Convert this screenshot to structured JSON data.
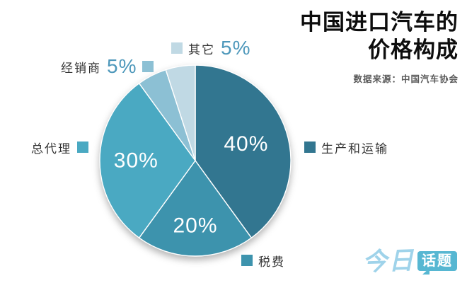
{
  "header": {
    "title_line1": "中国进口汽车的",
    "title_line2": "价格构成",
    "source": "数据来源：中国汽车协会"
  },
  "chart_data": {
    "type": "pie",
    "title": "中国进口汽车的价格构成",
    "start_angle_deg": 0,
    "direction": "clockwise",
    "legend_position": "around-pie-callouts",
    "slices": [
      {
        "key": "production-transport",
        "label": "生产和运输",
        "value": 40,
        "pct_label": "40%",
        "color": "#327690",
        "label_inside": true,
        "label_r": 0.56
      },
      {
        "key": "tax",
        "label": "税费",
        "value": 20,
        "pct_label": "20%",
        "color": "#3d93ad",
        "label_inside": true,
        "label_r": 0.68
      },
      {
        "key": "general-agent",
        "label": "总代理",
        "value": 30,
        "pct_label": "30%",
        "color": "#4aa9c2",
        "label_inside": true,
        "label_r": 0.62
      },
      {
        "key": "dealer",
        "label": "经销商",
        "value": 5,
        "pct_label": "5%",
        "color": "#8cc0d4",
        "label_inside": false
      },
      {
        "key": "other",
        "label": "其它",
        "value": 5,
        "pct_label": "5%",
        "color": "#c0d9e4",
        "label_inside": false
      }
    ]
  },
  "logo": {
    "part1": "今日",
    "part2": "话题"
  },
  "colors": {
    "percent_callout_text": "#4e98bb",
    "logo_text": "#9fd3ea",
    "logo_bubble": "#57b7d2",
    "slice_divider": "#ffffff"
  }
}
